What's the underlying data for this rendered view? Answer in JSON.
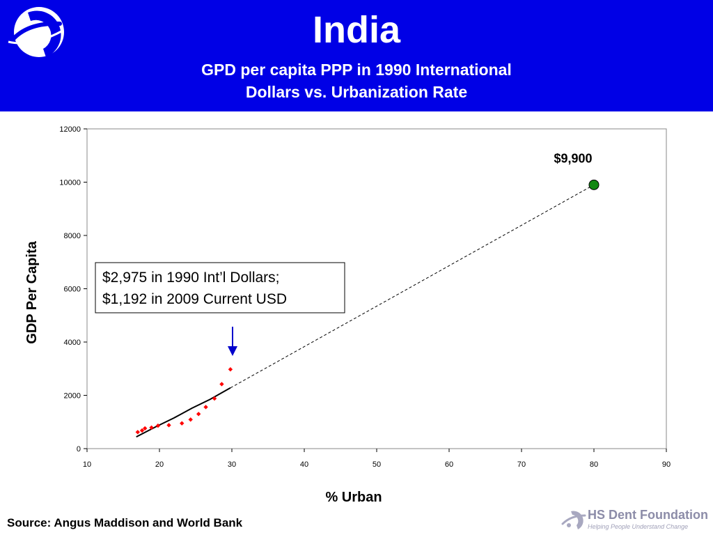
{
  "header": {
    "title": "India",
    "subtitle": "GPD per capita PPP in 1990 International Dollars vs. Urbanization Rate"
  },
  "footer": {
    "source": "Source: Angus Maddison and World Bank",
    "brand_name": "HS Dent Foundation",
    "brand_tagline": "Helping People Understand Change"
  },
  "colors": {
    "header_bg": "#0000e6",
    "series_points": "#ff0000",
    "projection_point": "#118811",
    "arrow": "#0000cc"
  },
  "chart_data": {
    "type": "scatter",
    "xlabel": "% Urban",
    "ylabel": "GDP Per Capita",
    "xlim": [
      10,
      90
    ],
    "ylim": [
      0,
      12000
    ],
    "x_ticks": [
      10,
      20,
      30,
      40,
      50,
      60,
      70,
      80,
      90
    ],
    "y_ticks": [
      0,
      2000,
      4000,
      6000,
      8000,
      10000,
      12000
    ],
    "grid": false,
    "series": [
      {
        "marker": "diamond",
        "points": [
          {
            "x": 17.0,
            "y": 620
          },
          {
            "x": 17.6,
            "y": 680
          },
          {
            "x": 18.0,
            "y": 760
          },
          {
            "x": 18.9,
            "y": 790
          },
          {
            "x": 19.8,
            "y": 860
          },
          {
            "x": 21.3,
            "y": 880
          },
          {
            "x": 23.1,
            "y": 950
          },
          {
            "x": 24.3,
            "y": 1090
          },
          {
            "x": 25.4,
            "y": 1300
          },
          {
            "x": 26.4,
            "y": 1560
          },
          {
            "x": 27.6,
            "y": 1880
          },
          {
            "x": 28.6,
            "y": 2420
          },
          {
            "x": 29.8,
            "y": 2975
          }
        ]
      }
    ],
    "trendline": [
      {
        "x": 16.8,
        "y": 440
      },
      {
        "x": 19.5,
        "y": 820
      },
      {
        "x": 22.0,
        "y": 1150
      },
      {
        "x": 24.5,
        "y": 1520
      },
      {
        "x": 27.0,
        "y": 1850
      },
      {
        "x": 29.8,
        "y": 2280
      }
    ],
    "projection_line": [
      {
        "x": 29.8,
        "y": 2280
      },
      {
        "x": 80.0,
        "y": 9900
      }
    ],
    "projection_point": {
      "x": 80,
      "y": 9900,
      "label": "$9,900"
    },
    "annotation": {
      "lines": [
        "$2,975 in 1990 Int’l Dollars;",
        "$1,192 in 2009 Current USD"
      ],
      "arrow_x": 30
    }
  }
}
